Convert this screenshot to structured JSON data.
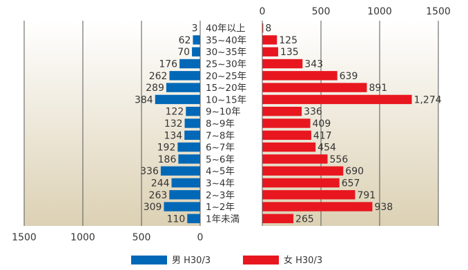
{
  "chart_data": {
    "type": "bar",
    "orientation": "horizontal",
    "layout": "population-pyramid",
    "categories": [
      "40年以上",
      "35~40年",
      "30~35年",
      "25~30年",
      "20~25年",
      "15~20年",
      "10~15年",
      "9~10年",
      "8~9年",
      "7~8年",
      "6~7年",
      "5~6年",
      "4~5年",
      "3~4年",
      "2~3年",
      "1~2年",
      "1年未満"
    ],
    "series": [
      {
        "name": "男 H30/3",
        "color": "#0068b7",
        "side": "left",
        "values": [
          3,
          62,
          70,
          176,
          262,
          289,
          384,
          122,
          132,
          134,
          192,
          186,
          336,
          244,
          263,
          309,
          110
        ],
        "labels": [
          "3",
          "62",
          "70",
          "176",
          "262",
          "289",
          "384",
          "122",
          "132",
          "134",
          "192",
          "186",
          "336",
          "244",
          "263",
          "309",
          "110"
        ]
      },
      {
        "name": "女 H30/3",
        "color": "#e8171f",
        "side": "right",
        "values": [
          8,
          125,
          135,
          343,
          639,
          891,
          1274,
          336,
          409,
          417,
          454,
          556,
          690,
          657,
          791,
          938,
          265
        ],
        "labels": [
          "8",
          "125",
          "135",
          "343",
          "639",
          "891",
          "1,274",
          "336",
          "409",
          "417",
          "454",
          "556",
          "690",
          "657",
          "791",
          "938",
          "265"
        ]
      }
    ],
    "left_axis": {
      "range": [
        0,
        1500
      ],
      "ticks": [
        "1500",
        "1000",
        "500",
        "0"
      ],
      "position": "bottom"
    },
    "right_axis": {
      "range": [
        0,
        1500
      ],
      "ticks": [
        "0",
        "500",
        "1000",
        "1500"
      ],
      "position": "top"
    },
    "grid": true,
    "legend": {
      "placement": "bottom-center"
    },
    "background": {
      "top": "#ffffff",
      "bottom": "#dcd1b4"
    }
  }
}
